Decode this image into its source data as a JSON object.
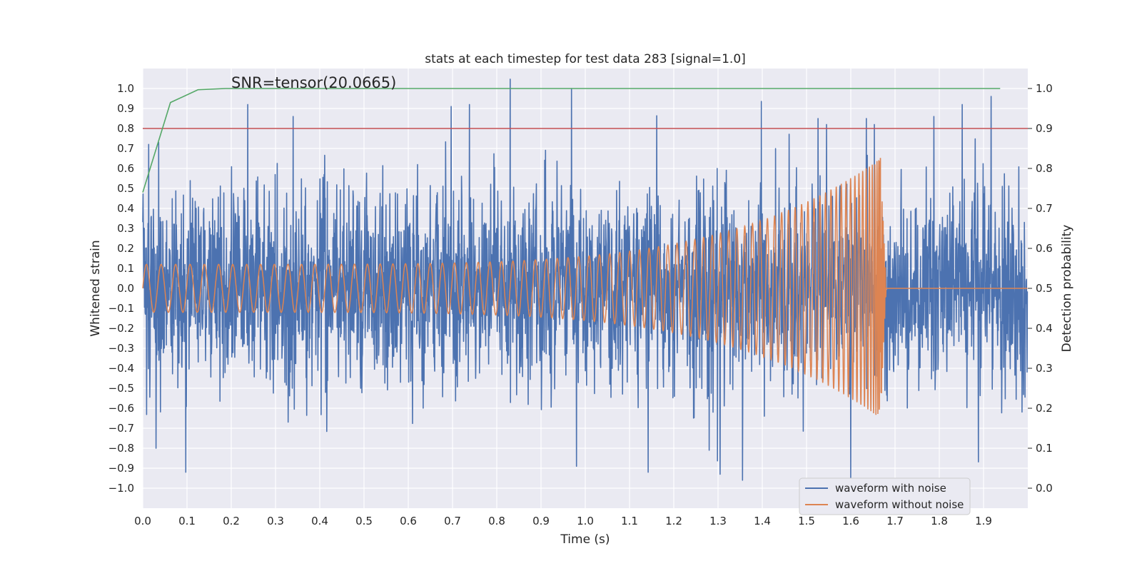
{
  "chart_data": {
    "type": "line",
    "title": "stats at each timestep for test data 283 [signal=1.0]",
    "xlabel": "Time (s)",
    "ylabel": "Whitened strain",
    "y2label": "Detection probability",
    "annotation": "SNR=tensor(20.0665)",
    "xlim": [
      0.0,
      2.0
    ],
    "ylim": [
      -1.1,
      1.1
    ],
    "y2lim": [
      -0.05,
      1.05
    ],
    "grid": true,
    "legend_position": "lower-right",
    "x_ticks": [
      "0.0",
      "0.1",
      "0.2",
      "0.3",
      "0.4",
      "0.5",
      "0.6",
      "0.7",
      "0.8",
      "0.9",
      "1.0",
      "1.1",
      "1.2",
      "1.3",
      "1.4",
      "1.5",
      "1.6",
      "1.7",
      "1.8",
      "1.9"
    ],
    "y_ticks": [
      "1.0",
      "0.9",
      "0.8",
      "0.7",
      "0.6",
      "0.5",
      "0.4",
      "0.3",
      "0.2",
      "0.1",
      "0.0",
      "−0.1",
      "−0.2",
      "−0.3",
      "−0.4",
      "−0.5",
      "−0.6",
      "−0.7",
      "−0.8",
      "−0.9",
      "−1.0"
    ],
    "y2_ticks": [
      "1.0",
      "0.9",
      "0.8",
      "0.7",
      "0.6",
      "0.5",
      "0.4",
      "0.3",
      "0.2",
      "0.1",
      "0.0"
    ],
    "series": [
      {
        "name": "waveform with noise",
        "color": "#4c72b0",
        "axis": "left",
        "peaks": [
          {
            "x": 0.03,
            "y": -0.8
          },
          {
            "x": 0.036,
            "y": 0.73
          },
          {
            "x": 0.097,
            "y": -0.92
          },
          {
            "x": 0.237,
            "y": 0.92
          },
          {
            "x": 0.34,
            "y": 0.86
          },
          {
            "x": 0.697,
            "y": 0.91
          },
          {
            "x": 0.738,
            "y": 0.92
          },
          {
            "x": 0.969,
            "y": 1.0
          },
          {
            "x": 0.98,
            "y": -0.89
          },
          {
            "x": 1.142,
            "y": -0.92
          },
          {
            "x": 1.28,
            "y": -0.81
          },
          {
            "x": 1.305,
            "y": -0.93
          },
          {
            "x": 1.355,
            "y": -0.96
          },
          {
            "x": 1.545,
            "y": 0.82
          },
          {
            "x": 1.6,
            "y": -0.95
          },
          {
            "x": 1.635,
            "y": 0.85
          },
          {
            "x": 1.653,
            "y": 0.82
          },
          {
            "x": 1.788,
            "y": 0.86
          },
          {
            "x": 1.852,
            "y": 0.92
          }
        ]
      },
      {
        "name": "waveform without noise",
        "color": "#dd8452",
        "axis": "left",
        "chirp": {
          "merger_time": 1.667,
          "start_frequency_hz": 30,
          "start_amplitude": 0.12,
          "peak_amplitude": 0.65,
          "min_value": -0.52,
          "ringdown_end": 1.68
        }
      },
      {
        "name": "",
        "color": "#55a868",
        "axis": "right",
        "x": [
          0.0,
          0.0625,
          0.125,
          0.1875,
          0.25,
          0.5,
          1.0,
          1.5,
          1.9375
        ],
        "values": [
          0.74,
          0.965,
          0.997,
          1.0,
          1.0,
          1.0,
          1.0,
          1.0,
          1.0
        ]
      }
    ],
    "threshold": {
      "color": "#c44e52",
      "axis": "right",
      "value": 0.9
    }
  }
}
